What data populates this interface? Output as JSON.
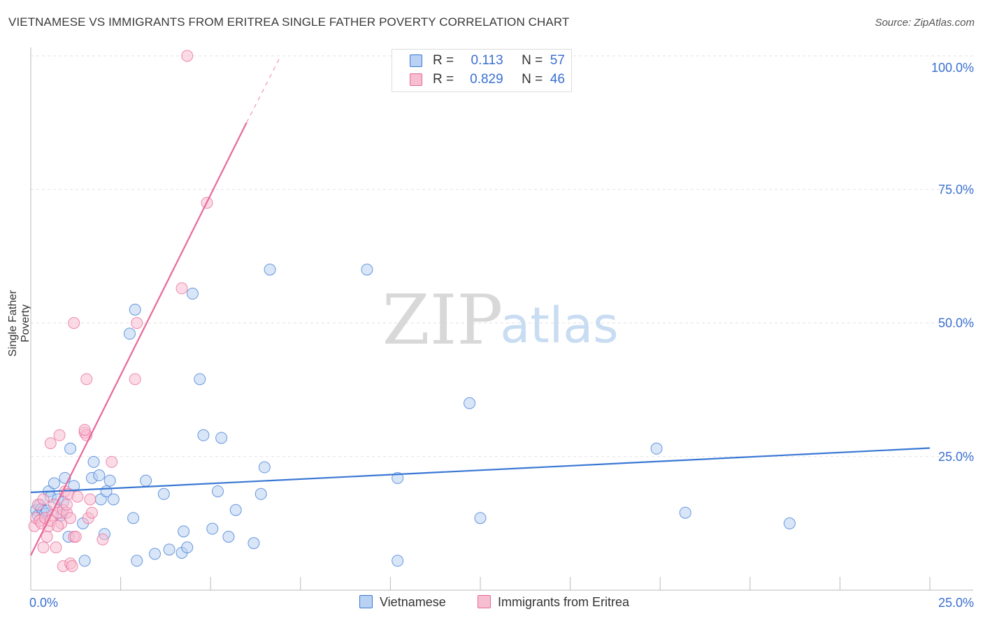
{
  "header": {
    "title": "VIETNAMESE VS IMMIGRANTS FROM ERITREA SINGLE FATHER POVERTY CORRELATION CHART",
    "source": "Source: ZipAtlas.com"
  },
  "watermark": {
    "part1": "ZIP",
    "part2": "atlas"
  },
  "colors": {
    "blue": "#3a78d4",
    "blue_fill": "#b9d2f3",
    "pink": "#e8689a",
    "pink_fill": "#f7bdd0",
    "axis_text": "#3a6fd0"
  },
  "legend_top": {
    "rows": [
      {
        "r_label": "R =",
        "r_value": "0.113",
        "n_label": "N =",
        "n_value": "57"
      },
      {
        "r_label": "R =",
        "r_value": "0.829",
        "n_label": "N =",
        "n_value": "46"
      }
    ]
  },
  "legend_bottom": {
    "items": [
      {
        "label": "Vietnamese"
      },
      {
        "label": "Immigrants from Eritrea"
      }
    ]
  },
  "chart_data": {
    "type": "scatter",
    "title": "VIETNAMESE VS IMMIGRANTS FROM ERITREA SINGLE FATHER POVERTY CORRELATION CHART",
    "xlabel": "",
    "ylabel": "Single Father Poverty",
    "xlim": [
      0,
      25
    ],
    "ylim": [
      0,
      100
    ],
    "x_tick_labels": [
      "0.0%",
      "25.0%"
    ],
    "y_ticks": [
      25,
      50,
      75,
      100
    ],
    "y_tick_labels": [
      "25.0%",
      "50.0%",
      "75.0%",
      "100.0%"
    ],
    "grid": true,
    "legend_position": "top-center",
    "series": [
      {
        "name": "Vietnamese",
        "R": 0.113,
        "N": 57,
        "trend": {
          "x0": 0,
          "y0": 18.3,
          "x1": 25,
          "y1": 26.6
        },
        "points": [
          [
            0.15,
            15.0
          ],
          [
            0.2,
            14.0
          ],
          [
            0.25,
            16.0
          ],
          [
            0.3,
            15.2
          ],
          [
            0.35,
            14.8
          ],
          [
            0.4,
            14.3
          ],
          [
            0.45,
            14.9
          ],
          [
            0.5,
            18.5
          ],
          [
            0.55,
            17.5
          ],
          [
            0.65,
            20.0
          ],
          [
            0.75,
            17.0
          ],
          [
            0.85,
            14.0
          ],
          [
            0.9,
            16.5
          ],
          [
            0.95,
            21.0
          ],
          [
            1.05,
            10.0
          ],
          [
            1.1,
            26.5
          ],
          [
            1.2,
            19.5
          ],
          [
            1.45,
            12.5
          ],
          [
            1.5,
            5.5
          ],
          [
            1.7,
            21.0
          ],
          [
            1.75,
            24.0
          ],
          [
            1.9,
            21.5
          ],
          [
            1.95,
            17.0
          ],
          [
            2.05,
            10.5
          ],
          [
            2.1,
            18.5
          ],
          [
            2.2,
            20.5
          ],
          [
            2.3,
            17.0
          ],
          [
            2.85,
            13.5
          ],
          [
            2.75,
            48.0
          ],
          [
            2.9,
            52.5
          ],
          [
            2.95,
            5.5
          ],
          [
            3.2,
            20.5
          ],
          [
            3.45,
            6.8
          ],
          [
            3.7,
            18.0
          ],
          [
            3.85,
            7.6
          ],
          [
            4.2,
            7.0
          ],
          [
            4.25,
            11.0
          ],
          [
            4.35,
            8.0
          ],
          [
            4.5,
            55.5
          ],
          [
            4.7,
            39.5
          ],
          [
            4.8,
            29.0
          ],
          [
            5.05,
            11.5
          ],
          [
            5.2,
            18.5
          ],
          [
            5.3,
            28.5
          ],
          [
            5.5,
            10.0
          ],
          [
            5.7,
            15.0
          ],
          [
            6.2,
            8.8
          ],
          [
            6.4,
            18.0
          ],
          [
            6.5,
            23.0
          ],
          [
            6.65,
            60.0
          ],
          [
            9.35,
            60.0
          ],
          [
            10.2,
            21.0
          ],
          [
            10.2,
            5.5
          ],
          [
            12.2,
            35.0
          ],
          [
            12.5,
            13.5
          ],
          [
            17.4,
            26.5
          ],
          [
            18.2,
            14.5
          ],
          [
            21.1,
            12.5
          ]
        ]
      },
      {
        "name": "Immigrants from Eritrea",
        "R": 0.829,
        "N": 46,
        "trend": {
          "x0": 0,
          "y0": 6.5,
          "x1": 6.0,
          "y1": 87.5
        },
        "trend_dashed": {
          "x0": 6.0,
          "y0": 87.5,
          "x1": 6.95,
          "y1": 100.0
        },
        "points": [
          [
            0.1,
            12.0
          ],
          [
            0.15,
            13.5
          ],
          [
            0.2,
            16.0
          ],
          [
            0.25,
            13.0
          ],
          [
            0.3,
            12.5
          ],
          [
            0.35,
            8.0
          ],
          [
            0.4,
            13.5
          ],
          [
            0.45,
            10.0
          ],
          [
            0.5,
            12.0
          ],
          [
            0.55,
            27.5
          ],
          [
            0.6,
            14.0
          ],
          [
            0.65,
            16.0
          ],
          [
            0.7,
            8.0
          ],
          [
            0.75,
            14.5
          ],
          [
            0.8,
            29.0
          ],
          [
            0.85,
            12.5
          ],
          [
            0.9,
            4.5
          ],
          [
            0.9,
            15.0
          ],
          [
            0.95,
            18.5
          ],
          [
            1.0,
            14.5
          ],
          [
            1.05,
            18.0
          ],
          [
            1.1,
            13.5
          ],
          [
            1.1,
            5.0
          ],
          [
            1.15,
            4.5
          ],
          [
            1.2,
            10.0
          ],
          [
            1.2,
            50.0
          ],
          [
            1.25,
            10.0
          ],
          [
            1.3,
            17.5
          ],
          [
            1.5,
            29.5
          ],
          [
            1.55,
            39.5
          ],
          [
            1.55,
            29.0
          ],
          [
            1.5,
            30.0
          ],
          [
            1.6,
            13.5
          ],
          [
            1.65,
            17.0
          ],
          [
            1.7,
            14.5
          ],
          [
            2.0,
            9.5
          ],
          [
            2.25,
            24.0
          ],
          [
            2.9,
            39.5
          ],
          [
            2.95,
            50.0
          ],
          [
            4.2,
            56.5
          ],
          [
            4.9,
            72.5
          ],
          [
            4.35,
            100.0
          ],
          [
            0.55,
            13.0
          ],
          [
            0.35,
            17.0
          ],
          [
            0.75,
            12.0
          ],
          [
            1.0,
            16.0
          ]
        ]
      }
    ]
  }
}
